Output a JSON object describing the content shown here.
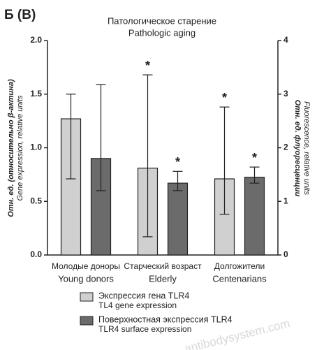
{
  "panel_label": "Б (В)",
  "chart_data": {
    "type": "bar",
    "title": "Патологическое старение",
    "subtitle": "Pathologic aging",
    "categories": [
      "Молодые доноры",
      "Старческий возраст",
      "Долгожители"
    ],
    "categories_en": [
      "Young donors",
      "Elderly",
      "Centenarians"
    ],
    "ylabel": "Отн. ед. (относительно β-актина)",
    "ylabel_en": "Gene expression, relative units",
    "y2label": "Отн. ед. флуоресценции",
    "y2label_en": "Fluorescence, relative units",
    "ylim": [
      0,
      2
    ],
    "yticks": [
      {
        "value": 0,
        "label": "0.0"
      },
      {
        "value": 0.5,
        "label": "0.5"
      },
      {
        "value": 1,
        "label": "1.0"
      },
      {
        "value": 1.5,
        "label": "1.5"
      },
      {
        "value": 2,
        "label": "2.0"
      }
    ],
    "y2lim": [
      0,
      4
    ],
    "y2ticks": [
      0,
      1,
      2,
      3,
      4
    ],
    "series": [
      {
        "name": "Экспрессия гена TLR4",
        "name_en": "TL4 gene expression",
        "color": "#d0d0d0",
        "values": [
          1.27,
          0.81,
          0.71
        ],
        "lower": [
          0.71,
          0.17,
          0.38
        ],
        "upper": [
          1.5,
          1.68,
          1.38
        ],
        "annotations": [
          null,
          "*",
          "*"
        ]
      },
      {
        "name": "Поверхностная экспрессия TLR4",
        "name_en": "TLR4 surface expression",
        "color": "#6b6b6b",
        "axis": "y2",
        "values": [
          1.8,
          1.34,
          1.45
        ],
        "lower": [
          1.2,
          1.2,
          1.34
        ],
        "upper": [
          3.18,
          1.56,
          1.64
        ],
        "annotations": [
          null,
          "*",
          "*"
        ]
      }
    ],
    "watermark": "antibodysystem.com"
  }
}
